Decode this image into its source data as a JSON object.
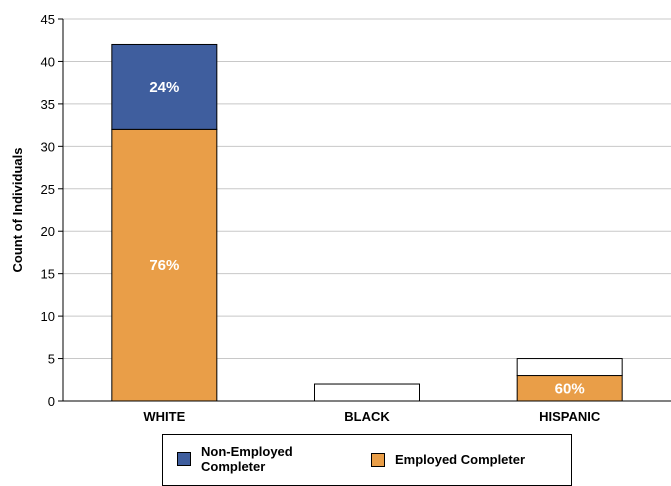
{
  "chart_data": {
    "type": "bar",
    "stacked": true,
    "title": "",
    "xlabel": "",
    "ylabel": "Count of Individuals",
    "ylim": [
      0,
      45
    ],
    "yticks": [
      0,
      5,
      10,
      15,
      20,
      25,
      30,
      35,
      40,
      45
    ],
    "grid": true,
    "legend_position": "bottom",
    "categories": [
      "WHITE",
      "BLACK",
      "HISPANIC"
    ],
    "series": [
      {
        "name": "Employed Completer",
        "color": "#E99E48",
        "values": [
          32,
          0,
          3
        ],
        "labels": [
          "76%",
          "",
          "60%"
        ]
      },
      {
        "name": "Non-Employed Completer",
        "color": "#3F5E9E",
        "values": [
          10,
          0,
          0
        ],
        "labels": [
          "24%",
          "",
          ""
        ]
      },
      {
        "name": "",
        "color": "#FFFFFF",
        "values": [
          0,
          2,
          2
        ],
        "labels": [
          "",
          "",
          ""
        ]
      }
    ],
    "legend": [
      {
        "name": "Non-Employed Completer",
        "color": "#3F5E9E"
      },
      {
        "name": "Employed Completer",
        "color": "#E99E48"
      }
    ]
  }
}
